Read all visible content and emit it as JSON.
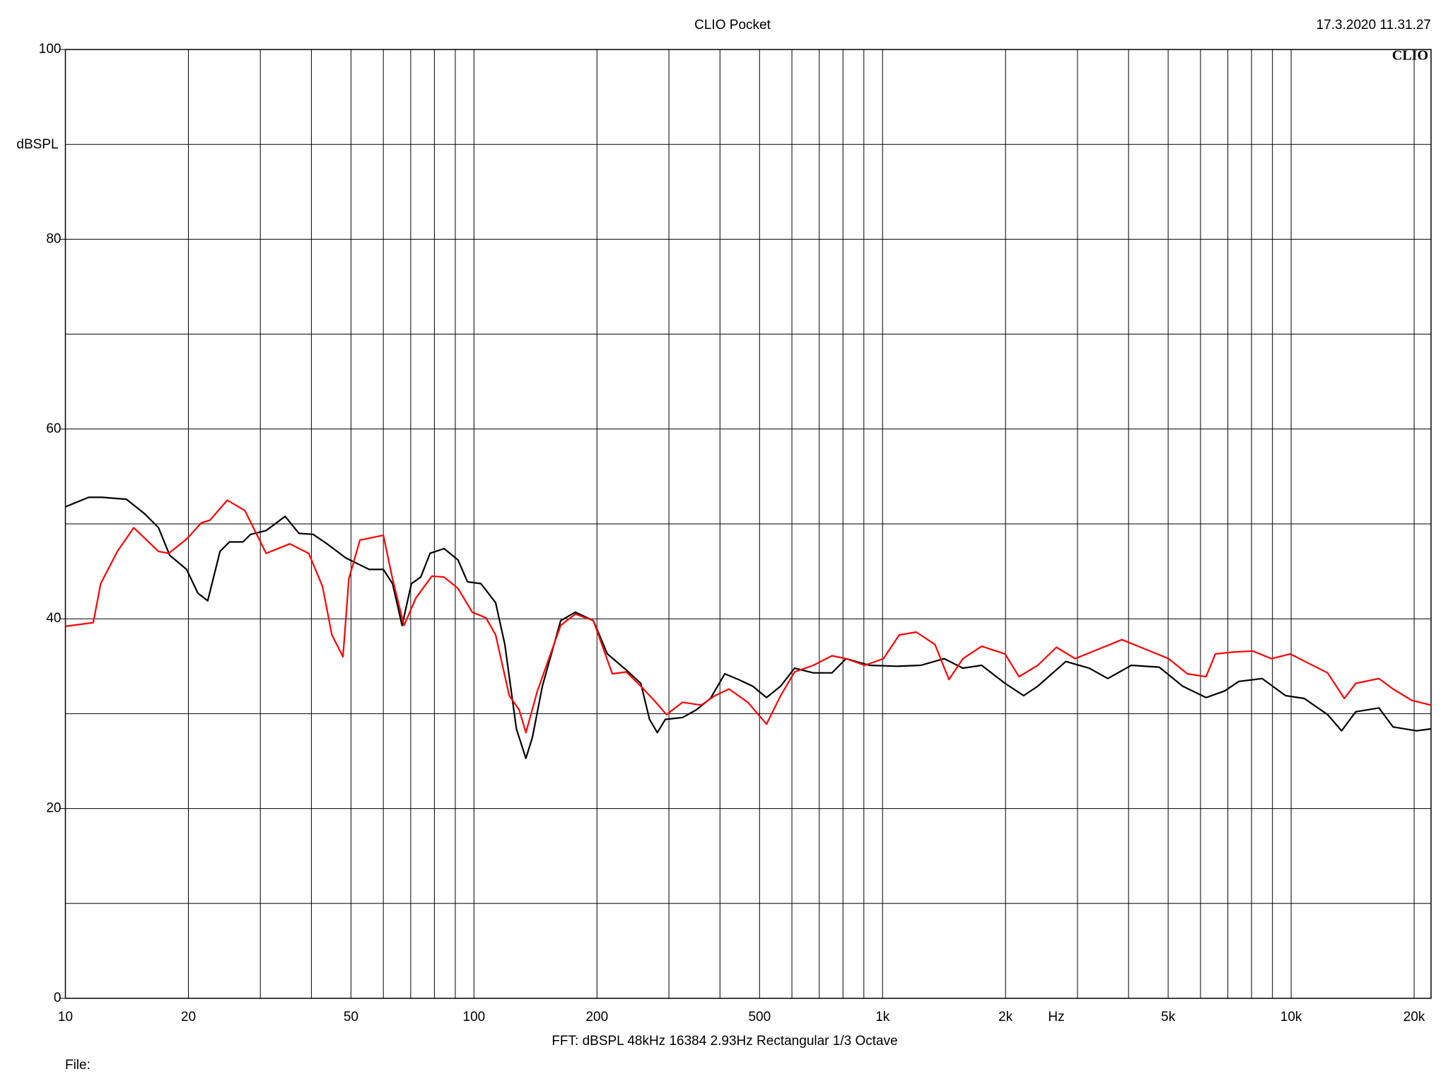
{
  "chart_data": {
    "type": "line",
    "title": "CLIO Pocket",
    "timestamp": "17.3.2020 11.31.27",
    "logo": "CLIO",
    "y_label": "dBSPL",
    "x_label": "Hz",
    "footer": "FFT:  dBSPL  48kHz  16384  2.93Hz  Rectangular  1/3 Octave",
    "file_label": "File:",
    "x_log": true,
    "grid": true,
    "xlim": [
      10,
      22000
    ],
    "ylim": [
      0,
      100
    ],
    "yticks": [
      0,
      20,
      40,
      60,
      80,
      100
    ],
    "yminor": [
      10,
      30,
      50,
      70,
      90
    ],
    "xticks": [
      10,
      20,
      50,
      100,
      200,
      500,
      {
        "value": 1000,
        "label": "1k"
      },
      {
        "value": 2000,
        "label": "2k"
      },
      {
        "value": 5000,
        "label": "5k"
      },
      {
        "value": 10000,
        "label": "10k"
      },
      {
        "value": 20000,
        "label": "20k"
      }
    ],
    "xminor": [
      30,
      40,
      60,
      70,
      80,
      90,
      300,
      400,
      600,
      700,
      800,
      900,
      3000,
      4000,
      6000,
      7000,
      8000,
      9000
    ],
    "series": [
      {
        "color": "#000000",
        "x": [
          10,
          11.4,
          12.3,
          14.1,
          15.6,
          16.9,
          18.0,
          19.8,
          21.1,
          22.3,
          23.9,
          25.2,
          27.2,
          28.4,
          31.0,
          34.5,
          37.3,
          40.4,
          43.7,
          48.6,
          55.4,
          60.0,
          63.2,
          66.7,
          70.3,
          74.1,
          78.1,
          84.5,
          91.4,
          96.4,
          104,
          113,
          119,
          127,
          134,
          139,
          147,
          163,
          177,
          196,
          212,
          236,
          256,
          269,
          281,
          294,
          324,
          350,
          379,
          411,
          444,
          481,
          520,
          563,
          609,
          677,
          752,
          814,
          929,
          1088,
          1241,
          1416,
          1573,
          1748,
          1994,
          2216,
          2398,
          2809,
          3204,
          3560,
          4062,
          4756,
          5427,
          6192,
          6880,
          7445,
          8495,
          9690,
          10770,
          12280,
          13290,
          14390,
          16410,
          17760,
          20260,
          22000
        ],
        "values": [
          51.8,
          52.8,
          52.8,
          52.6,
          51.1,
          49.6,
          46.7,
          45.2,
          42.7,
          41.9,
          47.1,
          48.1,
          48.1,
          48.9,
          49.3,
          50.8,
          49.0,
          48.9,
          47.9,
          46.4,
          45.2,
          45.2,
          43.7,
          39.3,
          43.7,
          44.4,
          46.9,
          47.4,
          46.2,
          43.9,
          43.7,
          41.7,
          37.3,
          28.4,
          25.3,
          27.5,
          32.9,
          39.8,
          40.7,
          39.8,
          36.3,
          34.6,
          33.2,
          29.4,
          28.0,
          29.4,
          29.6,
          30.4,
          31.6,
          34.2,
          33.6,
          32.9,
          31.7,
          32.9,
          34.8,
          34.3,
          34.3,
          35.8,
          35.1,
          35.0,
          35.1,
          35.8,
          34.8,
          35.1,
          33.2,
          31.9,
          32.9,
          35.5,
          34.8,
          33.7,
          35.1,
          34.9,
          32.9,
          31.7,
          32.4,
          33.4,
          33.7,
          31.9,
          31.6,
          29.9,
          28.2,
          30.2,
          30.6,
          28.6,
          28.2,
          28.4
        ]
      },
      {
        "color": "#ff0000",
        "x": [
          10,
          11.7,
          12.2,
          13.4,
          14.7,
          16.9,
          17.9,
          19.8,
          21.5,
          22.6,
          24.9,
          27.5,
          31.0,
          35.4,
          39.4,
          42.6,
          44.9,
          47.8,
          49.4,
          52.6,
          60.0,
          63.2,
          67.4,
          72.1,
          78.9,
          84.5,
          91.4,
          99.0,
          107,
          113,
          122,
          129,
          134,
          143,
          163,
          177,
          196,
          218,
          236,
          256,
          276,
          296,
          324,
          360,
          389,
          421,
          468,
          520,
          563,
          609,
          677,
          752,
          814,
          905,
          1005,
          1099,
          1209,
          1343,
          1454,
          1573,
          1748,
          1994,
          2158,
          2398,
          2665,
          2960,
          3467,
          3853,
          4395,
          5014,
          5572,
          6192,
          6525,
          7250,
          8057,
          8953,
          9948,
          11050,
          12280,
          13500,
          14390,
          16410,
          17760,
          19730,
          22000
        ],
        "values": [
          39.2,
          39.6,
          43.7,
          47.1,
          49.6,
          47.1,
          46.9,
          48.4,
          50.1,
          50.4,
          52.5,
          51.4,
          46.9,
          47.9,
          46.9,
          43.4,
          38.3,
          36.0,
          44.2,
          48.3,
          48.8,
          44.2,
          39.3,
          42.2,
          44.5,
          44.4,
          43.2,
          40.7,
          40.1,
          38.3,
          31.9,
          30.4,
          28.0,
          32.4,
          39.3,
          40.5,
          39.8,
          34.2,
          34.4,
          32.9,
          31.4,
          29.9,
          31.2,
          30.9,
          31.9,
          32.6,
          31.2,
          28.9,
          31.9,
          34.4,
          35.1,
          36.1,
          35.8,
          35.1,
          35.8,
          38.3,
          38.6,
          37.3,
          33.6,
          35.8,
          37.1,
          36.3,
          33.9,
          35.1,
          37.0,
          35.8,
          37.0,
          37.8,
          36.8,
          35.8,
          34.2,
          33.9,
          36.3,
          36.5,
          36.6,
          35.8,
          36.3,
          35.3,
          34.3,
          31.6,
          33.2,
          33.7,
          32.6,
          31.4,
          30.9
        ]
      }
    ]
  }
}
